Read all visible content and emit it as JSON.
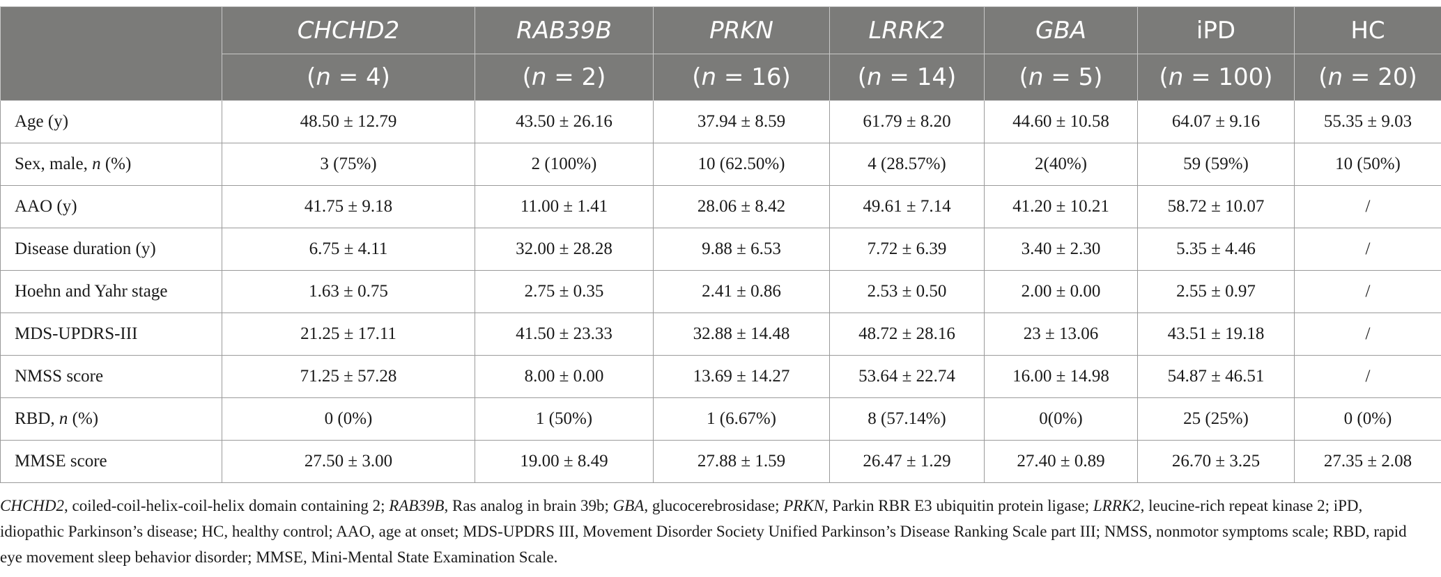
{
  "columns": [
    {
      "name": "CHCHD2",
      "italic": true,
      "n": "(n = 4)"
    },
    {
      "name": "RAB39B",
      "italic": true,
      "n": "(n = 2)"
    },
    {
      "name": "PRKN",
      "italic": true,
      "n": "(n = 16)"
    },
    {
      "name": "LRRK2",
      "italic": true,
      "n": "(n = 14)"
    },
    {
      "name": "GBA",
      "italic": true,
      "n": "(n = 5)"
    },
    {
      "name": "iPD",
      "italic": false,
      "n": "(n = 100)"
    },
    {
      "name": "HC",
      "italic": false,
      "n": "(n = 20)"
    }
  ],
  "n_prefix": "(",
  "n_letter": "n",
  "rows": [
    {
      "label_pre": "Age (y)",
      "label_ital": "",
      "label_post": "",
      "values": [
        "48.50 ± 12.79",
        "43.50 ± 26.16",
        "37.94 ± 8.59",
        "61.79 ± 8.20",
        "44.60 ± 10.58",
        "64.07 ± 9.16",
        "55.35 ± 9.03"
      ]
    },
    {
      "label_pre": "Sex, male, ",
      "label_ital": "n",
      "label_post": " (%)",
      "values": [
        "3 (75%)",
        "2 (100%)",
        "10 (62.50%)",
        "4 (28.57%)",
        "2(40%)",
        "59 (59%)",
        "10 (50%)"
      ]
    },
    {
      "label_pre": "AAO (y)",
      "label_ital": "",
      "label_post": "",
      "values": [
        "41.75 ± 9.18",
        "11.00 ± 1.41",
        "28.06 ± 8.42",
        "49.61 ± 7.14",
        "41.20 ± 10.21",
        "58.72 ± 10.07",
        "/"
      ]
    },
    {
      "label_pre": "Disease duration (y)",
      "label_ital": "",
      "label_post": "",
      "values": [
        "6.75 ± 4.11",
        "32.00 ± 28.28",
        "9.88 ± 6.53",
        "7.72 ± 6.39",
        "3.40 ± 2.30",
        "5.35 ± 4.46",
        "/"
      ]
    },
    {
      "label_pre": "Hoehn and Yahr stage",
      "label_ital": "",
      "label_post": "",
      "values": [
        "1.63 ± 0.75",
        "2.75 ± 0.35",
        "2.41 ± 0.86",
        "2.53 ± 0.50",
        "2.00 ± 0.00",
        "2.55 ± 0.97",
        "/"
      ]
    },
    {
      "label_pre": "MDS-UPDRS-III",
      "label_ital": "",
      "label_post": "",
      "values": [
        "21.25 ± 17.11",
        "41.50 ± 23.33",
        "32.88 ± 14.48",
        "48.72 ± 28.16",
        "23 ± 13.06",
        "43.51 ± 19.18",
        "/"
      ]
    },
    {
      "label_pre": "NMSS score",
      "label_ital": "",
      "label_post": "",
      "values": [
        "71.25 ± 57.28",
        "8.00 ± 0.00",
        "13.69 ± 14.27",
        "53.64 ± 22.74",
        "16.00 ± 14.98",
        "54.87 ± 46.51",
        "/"
      ]
    },
    {
      "label_pre": "RBD, ",
      "label_ital": "n",
      "label_post": " (%)",
      "values": [
        "0 (0%)",
        "1 (50%)",
        "1 (6.67%)",
        "8 (57.14%)",
        "0(0%)",
        "25 (25%)",
        "0 (0%)"
      ]
    },
    {
      "label_pre": "MMSE score",
      "label_ital": "",
      "label_post": "",
      "values": [
        "27.50 ± 3.00",
        "19.00 ± 8.49",
        "27.88 ± 1.59",
        "26.47 ± 1.29",
        "27.40 ± 0.89",
        "26.70 ± 3.25",
        "27.35 ± 2.08"
      ]
    }
  ],
  "footnote": [
    {
      "text": "CHCHD2",
      "italic": true
    },
    {
      "text": ", coiled-coil-helix-coil-helix domain containing 2; ",
      "italic": false
    },
    {
      "text": "RAB39B",
      "italic": true
    },
    {
      "text": ", Ras analog in brain 39b; ",
      "italic": false
    },
    {
      "text": "GBA",
      "italic": true
    },
    {
      "text": ", glucocerebrosidase; ",
      "italic": false
    },
    {
      "text": "PRKN",
      "italic": true
    },
    {
      "text": ", Parkin RBR E3 ubiquitin protein ligase; ",
      "italic": false
    },
    {
      "text": "LRRK2",
      "italic": true
    },
    {
      "text": ", leucine-rich repeat kinase 2; iPD, idiopathic Parkinson’s disease; HC, healthy control; AAO, age at onset; MDS-UPDRS III, Movement Disorder Society Unified Parkinson’s Disease Ranking Scale part III; NMSS, nonmotor symptoms scale; RBD, rapid eye movement sleep behavior disorder; MMSE, Mini-Mental State Examination Scale.",
      "italic": false
    }
  ]
}
